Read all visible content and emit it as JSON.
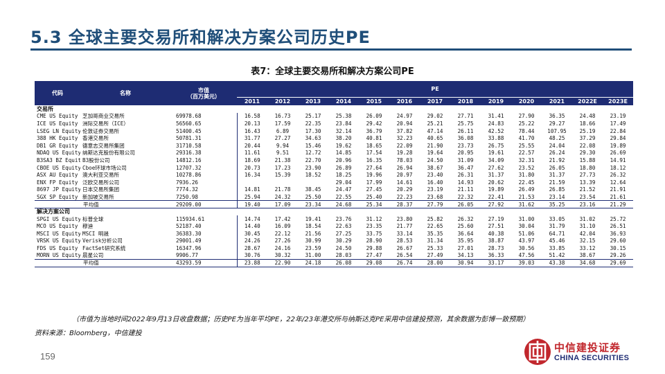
{
  "slide_title": "5.3  全球主要交易所和解决方案公司历史PE",
  "table_title": "表7：全球主要交易所和解决方案公司PE",
  "header": {
    "code": "代码",
    "name": "名称",
    "mcap_line1": "市值",
    "mcap_line2": "（百万美元）",
    "pe": "PE",
    "years": [
      "2011",
      "2012",
      "2013",
      "2014",
      "2015",
      "2016",
      "2017",
      "2018",
      "2019",
      "2020",
      "2021",
      "2022E",
      "2023E"
    ]
  },
  "sections": [
    {
      "label": "交易所",
      "rows": [
        {
          "code": "CME US Equity",
          "name": "芝加哥商业交易所",
          "mcap": "69978.68",
          "pe": [
            "16.58",
            "16.73",
            "25.17",
            "25.38",
            "26.09",
            "24.97",
            "29.02",
            "27.71",
            "31.41",
            "27.90",
            "36.35",
            "24.48",
            "23.19"
          ]
        },
        {
          "code": "ICE US Equity",
          "name": "洲际交易所（ICE）",
          "mcap": "56560.65",
          "pe": [
            "20.13",
            "17.59",
            "22.35",
            "23.84",
            "29.42",
            "20.94",
            "25.21",
            "25.75",
            "24.83",
            "25.22",
            "29.27",
            "18.66",
            "17.49"
          ]
        },
        {
          "code": "LSEG LN Equity",
          "name": "伦敦证券交易所",
          "mcap": "51400.45",
          "pe": [
            "16.43",
            "6.89",
            "17.30",
            "32.14",
            "36.79",
            "37.82",
            "47.14",
            "26.11",
            "42.52",
            "78.44",
            "107.95",
            "25.19",
            "22.84"
          ]
        },
        {
          "code": "388 HK Equity",
          "name": "香港交易所",
          "mcap": "50781.31",
          "pe": [
            "31.77",
            "27.27",
            "34.63",
            "38.20",
            "40.81",
            "32.23",
            "40.65",
            "36.08",
            "33.88",
            "41.70",
            "48.25",
            "37.29",
            "29.84"
          ]
        },
        {
          "code": "DB1 GR Equity",
          "name": "德意志交易所集团",
          "mcap": "31710.58",
          "pe": [
            "20.44",
            "9.94",
            "15.46",
            "19.62",
            "18.65",
            "22.09",
            "21.90",
            "23.73",
            "26.75",
            "25.55",
            "24.04",
            "22.08",
            "19.89"
          ]
        },
        {
          "code": "NDAQ US Equity",
          "name": "纳斯达克股份有限公司",
          "mcap": "29316.38",
          "pe": [
            "11.61",
            "9.51",
            "12.72",
            "14.85",
            "17.54",
            "19.28",
            "19.64",
            "20.95",
            "19.61",
            "22.57",
            "26.24",
            "29.30",
            "26.69"
          ]
        },
        {
          "code": "B3SA3 BZ Equity",
          "name": "B3股份公司",
          "mcap": "14812.16",
          "pe": [
            "18.69",
            "21.38",
            "22.70",
            "20.96",
            "16.35",
            "78.03",
            "24.50",
            "31.09",
            "34.09",
            "32.31",
            "21.92",
            "15.88",
            "14.91"
          ]
        },
        {
          "code": "CBOE US Equity",
          "name": "Cboe环球市场公司",
          "mcap": "12707.32",
          "pe": [
            "20.73",
            "17.23",
            "23.90",
            "26.89",
            "27.64",
            "26.94",
            "38.67",
            "36.47",
            "27.62",
            "23.52",
            "26.05",
            "18.80",
            "18.12"
          ]
        },
        {
          "code": "ASX AU Equity",
          "name": "澳大利亚交易所",
          "mcap": "10278.86",
          "pe": [
            "16.34",
            "15.39",
            "18.52",
            "18.25",
            "19.96",
            "20.97",
            "23.40",
            "26.31",
            "31.37",
            "31.80",
            "31.37",
            "27.73",
            "26.32"
          ]
        },
        {
          "code": "ENX FP Equity",
          "name": "泛欧交易所公司",
          "mcap": "7936.26",
          "pe": [
            "",
            "",
            "",
            "29.04",
            "17.99",
            "14.61",
            "16.40",
            "14.93",
            "20.62",
            "22.45",
            "21.59",
            "13.39",
            "12.64"
          ]
        },
        {
          "code": "8697 JP Equity",
          "name": "日本交易所集团",
          "mcap": "7774.32",
          "pe": [
            "14.81",
            "21.78",
            "38.45",
            "24.47",
            "27.45",
            "20.29",
            "23.19",
            "21.11",
            "19.89",
            "26.49",
            "26.85",
            "21.52",
            "21.91"
          ]
        },
        {
          "code": "SGX SP Equity",
          "name": "新加坡交易所",
          "mcap": "7250.98",
          "pe": [
            "25.94",
            "24.32",
            "25.50",
            "22.55",
            "25.40",
            "22.23",
            "23.68",
            "22.32",
            "22.41",
            "21.53",
            "23.14",
            "23.54",
            "21.61"
          ]
        }
      ],
      "avg": {
        "label": "平均值",
        "mcap": "29209.00",
        "pe": [
          "19.40",
          "17.09",
          "23.34",
          "24.68",
          "25.34",
          "28.37",
          "27.79",
          "26.05",
          "27.92",
          "31.62",
          "35.25",
          "23.16",
          "21.29"
        ]
      }
    },
    {
      "label": "解决方案公司",
      "rows": [
        {
          "code": "SPGI US Equity",
          "name": "标普全球",
          "mcap": "115934.61",
          "pe": [
            "14.74",
            "17.42",
            "19.41",
            "23.76",
            "31.12",
            "23.80",
            "25.82",
            "26.32",
            "27.19",
            "31.00",
            "33.05",
            "31.02",
            "25.72"
          ]
        },
        {
          "code": "MCO US Equity",
          "name": "穆迪",
          "mcap": "52187.40",
          "pe": [
            "14.40",
            "16.09",
            "18.54",
            "22.63",
            "23.35",
            "21.77",
            "22.65",
            "25.60",
            "27.51",
            "30.04",
            "31.79",
            "31.10",
            "26.51"
          ]
        },
        {
          "code": "MSCI US Equity",
          "name": "MSCI 明晟",
          "mcap": "36383.30",
          "pe": [
            "30.45",
            "22.12",
            "21.56",
            "27.25",
            "33.75",
            "33.14",
            "35.35",
            "36.64",
            "40.38",
            "51.06",
            "64.71",
            "42.04",
            "36.93"
          ]
        },
        {
          "code": "VRSK US Equity",
          "name": "Verisk分析公司",
          "mcap": "29001.49",
          "pe": [
            "24.26",
            "27.26",
            "30.99",
            "30.29",
            "28.90",
            "28.53",
            "31.34",
            "35.95",
            "38.87",
            "43.97",
            "45.46",
            "32.15",
            "29.60"
          ]
        },
        {
          "code": "FDS US Equity",
          "name": "FactSet研究系统",
          "mcap": "16347.96",
          "pe": [
            "28.67",
            "24.16",
            "23.59",
            "24.50",
            "29.88",
            "26.67",
            "25.33",
            "27.01",
            "28.73",
            "30.56",
            "33.85",
            "33.12",
            "30.15"
          ]
        },
        {
          "code": "MORN US Equity",
          "name": "晨星公司",
          "mcap": "9906.77",
          "pe": [
            "30.76",
            "30.32",
            "31.00",
            "28.03",
            "27.47",
            "26.54",
            "27.49",
            "34.13",
            "36.33",
            "47.56",
            "51.42",
            "38.67",
            "29.26"
          ]
        }
      ],
      "avg": {
        "label": "平均值",
        "mcap": "43293.59",
        "pe": [
          "23.88",
          "22.90",
          "24.18",
          "26.08",
          "29.08",
          "26.74",
          "28.00",
          "30.94",
          "33.17",
          "39.03",
          "43.38",
          "34.68",
          "29.69"
        ]
      }
    }
  ],
  "note": "（市值为当地时间2022年9月13日收盘数据；历史PE为当年平均PE，22年/23年港交所与纳斯达克PE采用中信建投预测，其余数据为彭博一致预期）",
  "source": "资料来源：Bloomberg，中信建投",
  "page_number": "159",
  "logo": {
    "cn": "中信建投证券",
    "en": "CHINA SECURITIES",
    "icon": "china-securities-logo-icon"
  },
  "colors": {
    "header_bg": "#1e2c73",
    "title": "#1f4e79",
    "brand_red": "#c1272d"
  }
}
